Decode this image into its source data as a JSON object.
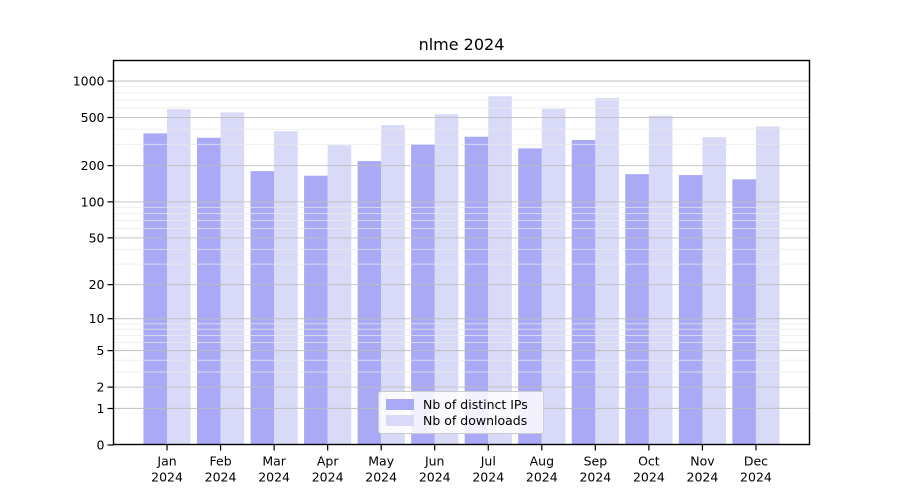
{
  "figure": {
    "title": "nlme 2024"
  },
  "chart_data": {
    "type": "bar",
    "title": "nlme 2024",
    "categories": [
      "Jan 2024",
      "Feb 2024",
      "Mar 2024",
      "Apr 2024",
      "May 2024",
      "Jun 2024",
      "Jul 2024",
      "Aug 2024",
      "Sep 2024",
      "Oct 2024",
      "Nov 2024",
      "Dec 2024"
    ],
    "series": [
      {
        "name": "Nb of distinct IPs",
        "color": "#a9a9f6",
        "values": [
          370,
          340,
          180,
          165,
          218,
          300,
          347,
          278,
          326,
          170,
          167,
          154
        ]
      },
      {
        "name": "Nb of downloads",
        "color": "#d9d9f8",
        "values": [
          585,
          551,
          385,
          295,
          433,
          532,
          749,
          590,
          725,
          518,
          344,
          421
        ]
      }
    ],
    "xlabel": "",
    "ylabel": "",
    "yscale": "log1p",
    "yticks": [
      0,
      1,
      2,
      5,
      10,
      20,
      50,
      100,
      200,
      500,
      1000
    ],
    "ylim": [
      0,
      1480
    ],
    "grid": "horizontal log major+minor, drawn over bars",
    "legend_position": "inside-bottom-center",
    "colors": {
      "axis": "#000000",
      "major_gridline": "#bdbdbd",
      "minor_gridline": "#e9e9e9",
      "background": "#ffffff",
      "legend_border": "#cccccc"
    }
  }
}
